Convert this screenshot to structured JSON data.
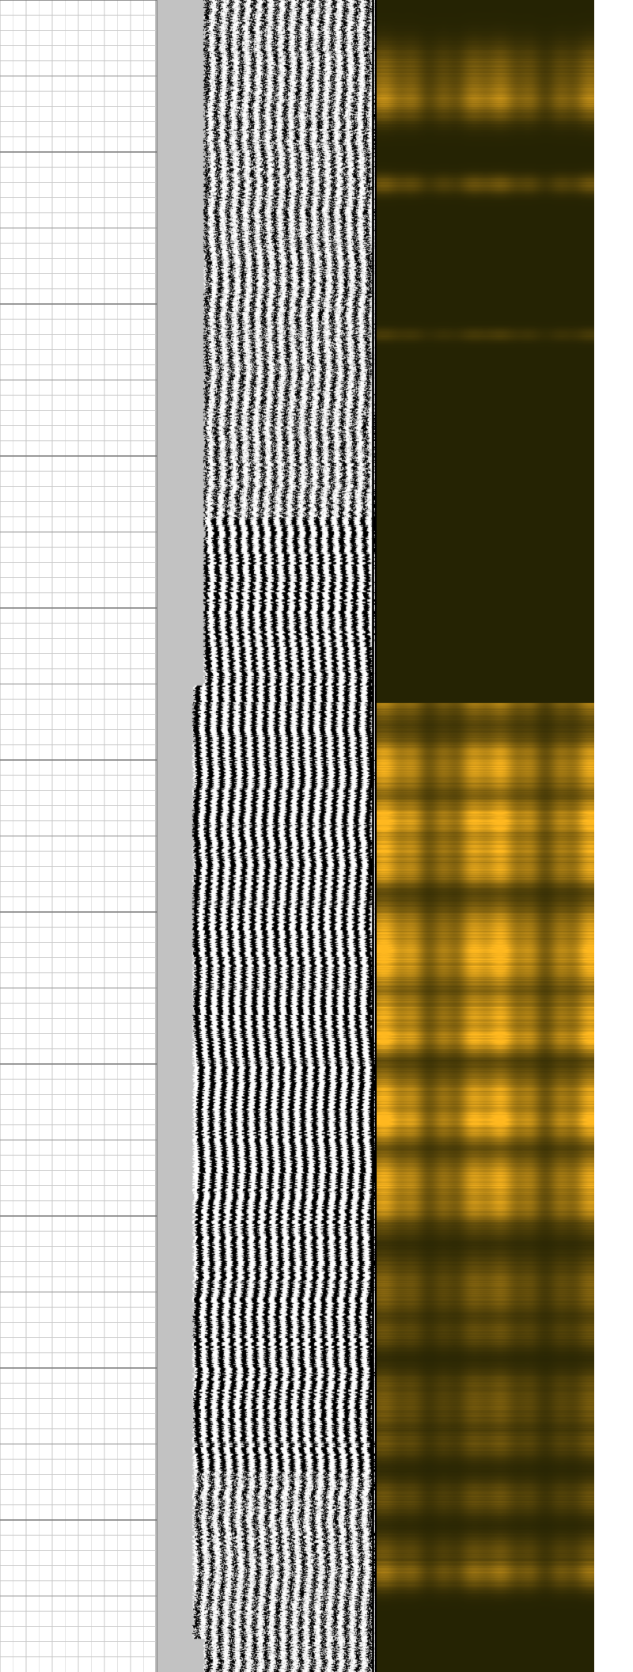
{
  "chart_data": {
    "type": "heatmap",
    "title": "",
    "description_tracks": [
      "depth-grid",
      "variable-density-waveform",
      "amplitude-map"
    ],
    "depth_samples": 2112,
    "grid": {
      "minor_lines": true,
      "major_lines": true
    },
    "waveform": {
      "pattern": "variable-density",
      "colors": {
        "background": "#c2c2c2",
        "peak": "#000000",
        "trough": "#ffffff"
      },
      "zones": [
        {
          "from": 0.0,
          "to": 0.31,
          "coherence": 0.45
        },
        {
          "from": 0.31,
          "to": 0.43,
          "coherence": 0.7
        },
        {
          "from": 0.43,
          "to": 0.71,
          "coherence": 0.95
        },
        {
          "from": 0.71,
          "to": 0.88,
          "coherence": 0.7
        },
        {
          "from": 0.88,
          "to": 1.0,
          "coherence": 0.5
        }
      ]
    },
    "amplitude_map": {
      "colors": {
        "low": "#252303",
        "high": "#ffb81f"
      },
      "bands": [
        {
          "depth": 0.04,
          "intensity": 0.35,
          "spread": 0.015
        },
        {
          "depth": 0.06,
          "intensity": 0.55,
          "spread": 0.012
        },
        {
          "depth": 0.11,
          "intensity": 0.3,
          "spread": 0.006
        },
        {
          "depth": 0.2,
          "intensity": 0.15,
          "spread": 0.004
        },
        {
          "depth": 0.45,
          "intensity": 0.7,
          "spread": 0.01
        },
        {
          "depth": 0.49,
          "intensity": 1.0,
          "spread": 0.015
        },
        {
          "depth": 0.52,
          "intensity": 0.8,
          "spread": 0.01
        },
        {
          "depth": 0.57,
          "intensity": 1.0,
          "spread": 0.025
        },
        {
          "depth": 0.62,
          "intensity": 0.95,
          "spread": 0.012
        },
        {
          "depth": 0.67,
          "intensity": 0.95,
          "spread": 0.015
        },
        {
          "depth": 0.72,
          "intensity": 0.75,
          "spread": 0.012
        },
        {
          "depth": 0.77,
          "intensity": 0.4,
          "spread": 0.02
        },
        {
          "depth": 0.84,
          "intensity": 0.35,
          "spread": 0.02
        },
        {
          "depth": 0.94,
          "intensity": 0.5,
          "spread": 0.01
        }
      ]
    }
  }
}
